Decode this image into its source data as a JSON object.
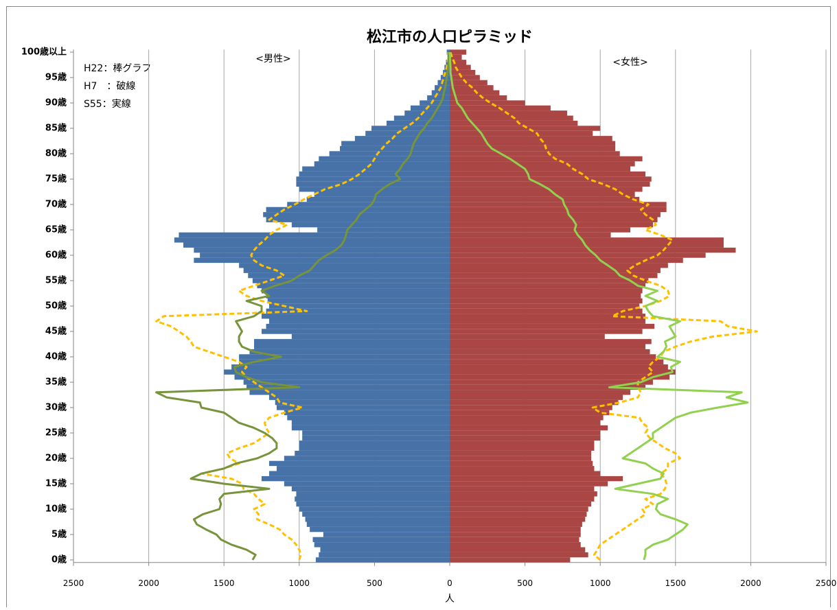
{
  "chart_data": {
    "type": "pyramid",
    "title": "松江市の人口ピラミッド",
    "x_label": "人",
    "side_labels": [
      "<男性>",
      "<女性>"
    ],
    "annotations": [
      "H22：棒グラフ",
      "H7　：破線",
      "S55：実線"
    ],
    "grid": true,
    "xlim": [
      -2500,
      2500
    ],
    "xticks": [
      {
        "value": -2500,
        "label": "2500"
      },
      {
        "value": -2000,
        "label": "2000"
      },
      {
        "value": -1500,
        "label": "1500"
      },
      {
        "value": -1000,
        "label": "1000"
      },
      {
        "value": -500,
        "label": "500"
      },
      0,
      500,
      1000,
      1500,
      2000,
      2500
    ],
    "categories": [
      "0歳",
      null,
      null,
      null,
      null,
      "5歳",
      null,
      null,
      null,
      null,
      "10歳",
      null,
      null,
      null,
      null,
      "15歳",
      null,
      null,
      null,
      null,
      "20歳",
      null,
      null,
      null,
      null,
      "25歳",
      null,
      null,
      null,
      null,
      "30歳",
      null,
      null,
      null,
      null,
      "35歳",
      null,
      null,
      null,
      null,
      "40歳",
      null,
      null,
      null,
      null,
      "45歳",
      null,
      null,
      null,
      null,
      "50歳",
      null,
      null,
      null,
      null,
      "55歳",
      null,
      null,
      null,
      null,
      "60歳",
      null,
      null,
      null,
      null,
      "65歳",
      null,
      null,
      null,
      null,
      "70歳",
      null,
      null,
      null,
      null,
      "75歳",
      null,
      null,
      null,
      null,
      "80歳",
      null,
      null,
      null,
      null,
      "85歳",
      null,
      null,
      null,
      null,
      "90歳",
      null,
      null,
      null,
      null,
      "95歳",
      null,
      null,
      null,
      null,
      "100歳以上"
    ],
    "series": [
      {
        "side": "left",
        "style": "bar",
        "color": "#4672a8",
        "values": [
          890,
          870,
          860,
          900,
          910,
          840,
          930,
          950,
          960,
          980,
          1000,
          1020,
          1030,
          1020,
          1050,
          1100,
          1250,
          1200,
          1150,
          1200,
          1100,
          1030,
          1000,
          1000,
          980,
          980,
          1050,
          1050,
          1080,
          1100,
          1150,
          1160,
          1200,
          1330,
          1350,
          1370,
          1430,
          1500,
          1450,
          1400,
          1400,
          1330,
          1300,
          1300,
          1050,
          1250,
          1220,
          1200,
          1250,
          1220,
          1200,
          1210,
          1220,
          1250,
          1280,
          1310,
          1340,
          1370,
          1400,
          1700,
          1660,
          1700,
          1770,
          1830,
          1800,
          880,
          1050,
          1220,
          1240,
          1220,
          1080,
          950,
          900,
          1000,
          1020,
          1020,
          1000,
          980,
          900,
          870,
          800,
          730,
          720,
          630,
          560,
          520,
          420,
          370,
          300,
          260,
          200,
          150,
          120,
          100,
          80,
          60,
          45,
          35,
          25,
          15,
          20
        ]
      },
      {
        "side": "right",
        "style": "bar",
        "color": "#aa4644",
        "values": [
          800,
          920,
          900,
          870,
          860,
          870,
          870,
          880,
          900,
          910,
          920,
          940,
          960,
          980,
          960,
          1050,
          1150,
          1000,
          960,
          950,
          940,
          940,
          960,
          960,
          1000,
          1000,
          1050,
          1000,
          1020,
          1060,
          1080,
          1120,
          1150,
          1200,
          1300,
          1350,
          1460,
          1500,
          1450,
          1420,
          1370,
          1330,
          1300,
          1340,
          1030,
          1280,
          1360,
          1300,
          1300,
          1280,
          1260,
          1280,
          1270,
          1280,
          1300,
          1320,
          1380,
          1400,
          1450,
          1550,
          1700,
          1900,
          1820,
          1820,
          1070,
          1200,
          1350,
          1380,
          1400,
          1440,
          1440,
          1260,
          1230,
          1280,
          1330,
          1340,
          1300,
          1200,
          1230,
          1280,
          1130,
          1100,
          1100,
          1080,
          950,
          1000,
          850,
          820,
          780,
          670,
          500,
          380,
          330,
          290,
          250,
          200,
          170,
          140,
          110,
          80,
          110
        ]
      },
      {
        "side": "left",
        "style": "dashed",
        "color": "#ffc000",
        "values": [
          1000,
          990,
          1000,
          1020,
          1050,
          1100,
          1130,
          1200,
          1280,
          1270,
          1300,
          1230,
          1270,
          1300,
          1370,
          1380,
          1450,
          1650,
          1500,
          1400,
          1460,
          1480,
          1400,
          1300,
          1250,
          1200,
          1220,
          1230,
          1200,
          1100,
          980,
          1130,
          1150,
          1200,
          1250,
          1300,
          1350,
          1380,
          1350,
          1400,
          1500,
          1600,
          1700,
          1720,
          1750,
          1800,
          1850,
          1950,
          1900,
          950,
          1100,
          1250,
          1350,
          1400,
          1300,
          1200,
          1100,
          1150,
          1250,
          1300,
          1320,
          1300,
          1270,
          1230,
          1200,
          1150,
          1080,
          1200,
          1150,
          1100,
          1030,
          970,
          900,
          830,
          720,
          650,
          600,
          560,
          520,
          500,
          480,
          450,
          420,
          380,
          350,
          300,
          250,
          210,
          180,
          150,
          120,
          100,
          80,
          60,
          50,
          40,
          30,
          20,
          15,
          10,
          10
        ]
      },
      {
        "side": "right",
        "style": "dashed",
        "color": "#ffc000",
        "values": [
          1000,
          960,
          980,
          1000,
          1050,
          1100,
          1150,
          1200,
          1250,
          1300,
          1280,
          1350,
          1300,
          1400,
          1430,
          1440,
          1430,
          1400,
          1450,
          1450,
          1530,
          1500,
          1430,
          1380,
          1330,
          1300,
          1320,
          1280,
          1260,
          1000,
          950,
          1130,
          1250,
          1270,
          1250,
          1250,
          1300,
          1350,
          1320,
          1350,
          1400,
          1420,
          1500,
          1600,
          1750,
          2040,
          1850,
          1800,
          1080,
          1150,
          1300,
          1400,
          1460,
          1450,
          1400,
          1300,
          1220,
          1180,
          1230,
          1300,
          1380,
          1420,
          1450,
          1480,
          1400,
          1300,
          1370,
          1350,
          1300,
          1270,
          1320,
          1220,
          1150,
          1100,
          1020,
          920,
          880,
          820,
          780,
          700,
          660,
          640,
          630,
          600,
          580,
          520,
          460,
          430,
          380,
          330,
          270,
          220,
          180,
          150,
          110,
          80,
          60,
          40,
          30,
          15,
          5
        ]
      },
      {
        "side": "left",
        "style": "solid",
        "color": "#77933c",
        "values": [
          1310,
          1290,
          1350,
          1450,
          1520,
          1550,
          1620,
          1680,
          1700,
          1640,
          1530,
          1520,
          1530,
          1500,
          1200,
          1500,
          1720,
          1650,
          1500,
          1420,
          1280,
          1200,
          1150,
          1150,
          1180,
          1230,
          1300,
          1400,
          1450,
          1500,
          1650,
          1660,
          1880,
          1950,
          1000,
          1250,
          1350,
          1420,
          1430,
          1300,
          1120,
          1300,
          1380,
          1400,
          1400,
          1380,
          1400,
          1420,
          1300,
          1250,
          1250,
          1350,
          1200,
          1250,
          1160,
          1050,
          1000,
          930,
          900,
          870,
          820,
          760,
          720,
          700,
          690,
          680,
          650,
          620,
          600,
          560,
          520,
          500,
          490,
          450,
          400,
          330,
          360,
          330,
          310,
          280,
          260,
          250,
          240,
          220,
          200,
          170,
          150,
          120,
          100,
          80,
          60,
          45,
          40,
          30,
          25,
          20,
          15,
          10,
          8,
          5,
          5
        ]
      },
      {
        "side": "right",
        "style": "solid",
        "color": "#92d050",
        "values": [
          1290,
          1300,
          1300,
          1350,
          1450,
          1500,
          1550,
          1580,
          1500,
          1400,
          1370,
          1380,
          1450,
          1350,
          1100,
          1250,
          1400,
          1420,
          1350,
          1300,
          1150,
          1200,
          1250,
          1300,
          1350,
          1350,
          1400,
          1450,
          1500,
          1600,
          1780,
          1980,
          1840,
          1940,
          1060,
          1270,
          1350,
          1480,
          1470,
          1530,
          1380,
          1420,
          1440,
          1430,
          1500,
          1480,
          1460,
          1530,
          1350,
          1320,
          1300,
          1380,
          1300,
          1380,
          1250,
          1200,
          1130,
          1100,
          1050,
          1000,
          970,
          930,
          900,
          880,
          850,
          830,
          840,
          820,
          790,
          780,
          760,
          750,
          700,
          660,
          600,
          530,
          520,
          500,
          450,
          400,
          340,
          280,
          250,
          230,
          210,
          180,
          150,
          120,
          100,
          80,
          50,
          40,
          30,
          20,
          15,
          10,
          5,
          5,
          3,
          2,
          1
        ]
      }
    ]
  }
}
